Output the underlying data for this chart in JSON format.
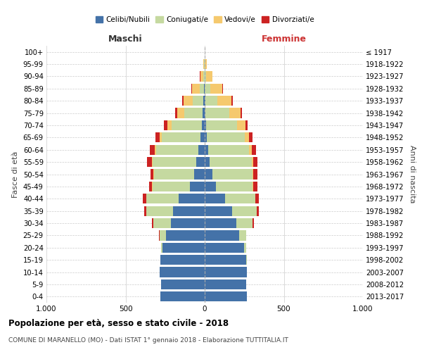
{
  "age_groups": [
    "0-4",
    "5-9",
    "10-14",
    "15-19",
    "20-24",
    "25-29",
    "30-34",
    "35-39",
    "40-44",
    "45-49",
    "50-54",
    "55-59",
    "60-64",
    "65-69",
    "70-74",
    "75-79",
    "80-84",
    "85-89",
    "90-94",
    "95-99",
    "100+"
  ],
  "birth_years": [
    "2013-2017",
    "2008-2012",
    "2003-2007",
    "1998-2002",
    "1993-1997",
    "1988-1992",
    "1983-1987",
    "1978-1982",
    "1973-1977",
    "1968-1972",
    "1963-1967",
    "1958-1962",
    "1953-1957",
    "1948-1952",
    "1943-1947",
    "1938-1942",
    "1933-1937",
    "1928-1932",
    "1923-1927",
    "1918-1922",
    "≤ 1917"
  ],
  "colors": {
    "celibe": "#4472a8",
    "coniugato": "#c5d9a0",
    "vedovo": "#f5c96e",
    "divorziato": "#cc2222"
  },
  "maschi": {
    "celibe": [
      280,
      275,
      285,
      280,
      265,
      245,
      215,
      200,
      165,
      95,
      65,
      55,
      40,
      25,
      20,
      12,
      8,
      4,
      2,
      1,
      0
    ],
    "coniugato": [
      0,
      0,
      0,
      2,
      10,
      40,
      110,
      170,
      205,
      235,
      255,
      275,
      268,
      248,
      188,
      118,
      68,
      28,
      8,
      2,
      0
    ],
    "vedovo": [
      0,
      0,
      0,
      0,
      0,
      0,
      0,
      0,
      0,
      2,
      3,
      5,
      7,
      12,
      28,
      42,
      58,
      48,
      18,
      4,
      1
    ],
    "divorziato": [
      0,
      0,
      0,
      0,
      0,
      2,
      8,
      12,
      20,
      20,
      20,
      28,
      32,
      28,
      22,
      15,
      8,
      3,
      1,
      0,
      0
    ]
  },
  "femmine": {
    "nubile": [
      265,
      260,
      268,
      262,
      248,
      218,
      198,
      172,
      128,
      72,
      48,
      32,
      22,
      14,
      8,
      6,
      4,
      2,
      1,
      0,
      0
    ],
    "coniugata": [
      0,
      0,
      0,
      4,
      14,
      44,
      105,
      155,
      192,
      232,
      252,
      265,
      260,
      238,
      198,
      148,
      78,
      32,
      10,
      2,
      0
    ],
    "vedova": [
      0,
      0,
      0,
      0,
      0,
      0,
      0,
      1,
      2,
      3,
      5,
      8,
      14,
      28,
      52,
      72,
      88,
      78,
      38,
      10,
      2
    ],
    "divorziata": [
      0,
      0,
      0,
      0,
      1,
      2,
      8,
      12,
      22,
      25,
      28,
      30,
      30,
      20,
      15,
      10,
      6,
      3,
      1,
      0,
      0
    ]
  },
  "xlim": 1000,
  "title": "Popolazione per età, sesso e stato civile - 2018",
  "subtitle": "COMUNE DI MARANELLO (MO) - Dati ISTAT 1° gennaio 2018 - Elaborazione TUTTITALIA.IT",
  "maschi_label": "Maschi",
  "femmine_label": "Femmine",
  "ylabel_left": "Fasce di età",
  "ylabel_right": "Anni di nascita",
  "legend_labels": [
    "Celibi/Nubili",
    "Coniugati/e",
    "Vedovi/e",
    "Divorziati/e"
  ]
}
